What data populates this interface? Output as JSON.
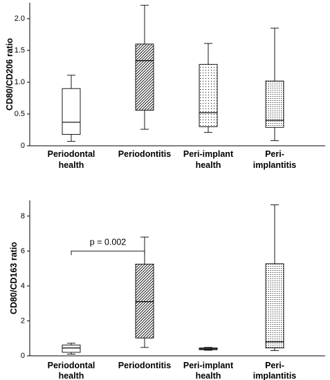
{
  "chart_data": [
    {
      "type": "boxplot",
      "ylabel": "CD80/CD206 ratio",
      "ylim": [
        0,
        2.25
      ],
      "yticks": [
        "0",
        "0.5",
        "1.0",
        "1.5",
        "2.0"
      ],
      "ytick_values": [
        0,
        0.5,
        1.0,
        1.5,
        2.0
      ],
      "categories": [
        {
          "line1": "Periodontal",
          "line2": "health"
        },
        {
          "line1": "Periodontitis",
          "line2": ""
        },
        {
          "line1": "Peri-implant",
          "line2": "health"
        },
        {
          "line1": "Peri-",
          "line2": "implantitis"
        }
      ],
      "boxes": [
        {
          "min": 0.07,
          "q1": 0.18,
          "median": 0.37,
          "q3": 0.9,
          "max": 1.11,
          "pattern": "none"
        },
        {
          "min": 0.26,
          "q1": 0.56,
          "median": 1.34,
          "q3": 1.6,
          "max": 2.21,
          "pattern": "diag"
        },
        {
          "min": 0.21,
          "q1": 0.3,
          "median": 0.52,
          "q3": 1.28,
          "max": 1.61,
          "pattern": "dots-sparse"
        },
        {
          "min": 0.08,
          "q1": 0.29,
          "median": 0.4,
          "q3": 1.02,
          "max": 1.85,
          "pattern": "dots-dense"
        }
      ],
      "annotations": []
    },
    {
      "type": "boxplot",
      "ylabel": "CD80/CD163 ratio",
      "ylim": [
        0,
        8.9
      ],
      "yticks": [
        "0",
        "2",
        "4",
        "6",
        "8"
      ],
      "ytick_values": [
        0,
        2,
        4,
        6,
        8
      ],
      "categories": [
        {
          "line1": "Periodontal",
          "line2": "health"
        },
        {
          "line1": "Periodontitis",
          "line2": ""
        },
        {
          "line1": "Peri-implant",
          "line2": "health"
        },
        {
          "line1": "Peri-",
          "line2": "implantitis"
        }
      ],
      "boxes": [
        {
          "min": 0.1,
          "q1": 0.2,
          "median": 0.45,
          "q3": 0.62,
          "max": 0.72,
          "pattern": "none"
        },
        {
          "min": 0.48,
          "q1": 1.02,
          "median": 3.1,
          "q3": 5.25,
          "max": 6.8,
          "pattern": "diag"
        },
        {
          "min": 0.32,
          "q1": 0.35,
          "median": 0.4,
          "q3": 0.45,
          "max": 0.48,
          "pattern": "dots-sparse"
        },
        {
          "min": 0.3,
          "q1": 0.45,
          "median": 0.8,
          "q3": 5.27,
          "max": 8.65,
          "pattern": "dots-dense"
        }
      ],
      "annotations": [
        {
          "text": "p = 0.002",
          "from": 0,
          "to": 1,
          "y": 6.0
        }
      ]
    }
  ]
}
